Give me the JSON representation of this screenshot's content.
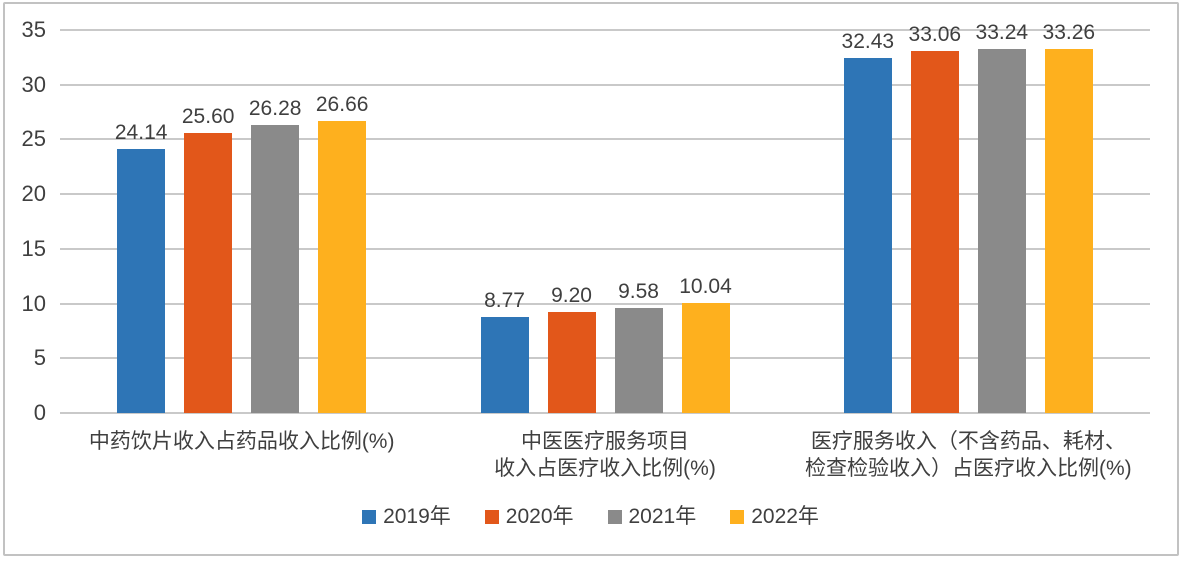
{
  "canvas": {
    "background": "#ffffff",
    "frame_border_color": "#c2c2c2"
  },
  "chart_data": {
    "type": "bar",
    "title": "",
    "categories": [
      [
        "中药饮片收入占药品收入比例(%)"
      ],
      [
        "中医医疗服务项目",
        "收入占医疗收入比例(%)"
      ],
      [
        "医疗服务收入（不含药品、耗材、",
        "检查检验收入）占医疗收入比例(%)"
      ]
    ],
    "series": [
      {
        "name": "2019年",
        "color": "#2e75b6",
        "values": [
          24.14,
          8.77,
          32.43
        ]
      },
      {
        "name": "2020年",
        "color": "#e2571a",
        "values": [
          25.6,
          9.2,
          33.06
        ]
      },
      {
        "name": "2021年",
        "color": "#8a8a8a",
        "values": [
          26.28,
          9.58,
          33.24
        ]
      },
      {
        "name": "2022年",
        "color": "#feb01e",
        "values": [
          26.66,
          10.04,
          33.26
        ]
      }
    ],
    "value_label_decimals": 2,
    "y_axis": {
      "min": 0,
      "max": 35,
      "tick_step": 5,
      "ticks": [
        0,
        5,
        10,
        15,
        20,
        25,
        30,
        35
      ],
      "grid": true,
      "gridline_color": "#c9c9c9"
    },
    "legend": {
      "position": "bottom",
      "entries": [
        "2019年",
        "2020年",
        "2021年",
        "2022年"
      ]
    },
    "text_color": "#3f3f3f"
  }
}
